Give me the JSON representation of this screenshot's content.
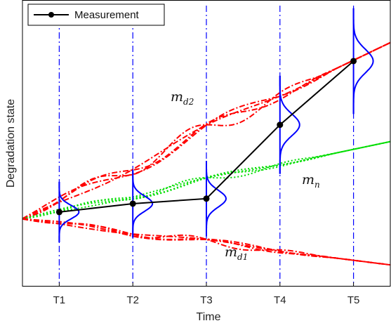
{
  "chart_data": {
    "type": "line",
    "title": "",
    "xlabel": "Time",
    "ylabel": "Degradation state",
    "categories": [
      "T1",
      "T2",
      "T3",
      "T4",
      "T5"
    ],
    "xlim": [
      0.5,
      5.5
    ],
    "ylim": [
      -0.8,
      2.6
    ],
    "grid": false,
    "legend": {
      "placement": "top-left",
      "entries": [
        "Measurement"
      ]
    },
    "series": [
      {
        "name": "Measurement",
        "color": "#000000",
        "marker": "circle",
        "x": [
          1,
          2,
          3,
          4,
          5
        ],
        "y": [
          0.08,
          0.18,
          0.24,
          1.12,
          1.88
        ]
      }
    ],
    "uncalibrated_trends": [
      {
        "label_main": "m",
        "label_sub": "d2",
        "color": "#ff0000",
        "style": "dash-dot",
        "x": [
          0.5,
          5.5
        ],
        "y_center": [
          0.0,
          2.1
        ],
        "spread": 0.12
      },
      {
        "label_main": "m",
        "label_sub": "n",
        "color": "#00dd00",
        "style": "dotted",
        "x": [
          0.5,
          5.5
        ],
        "y_center": [
          0.0,
          0.92
        ],
        "spread": 0.05
      },
      {
        "label_main": "m",
        "label_sub": "d1",
        "color": "#ff0000",
        "style": "dash-dot",
        "x": [
          0.5,
          5.5
        ],
        "y_center": [
          0.0,
          -0.55
        ],
        "spread": 0.05
      }
    ],
    "distributions": {
      "color": "#0000ff",
      "x": [
        1,
        2,
        3,
        4,
        5
      ],
      "mean": [
        0.08,
        0.18,
        0.24,
        1.12,
        1.88
      ],
      "sigma": [
        0.08,
        0.09,
        0.1,
        0.13,
        0.14
      ]
    },
    "vertical_guides": {
      "color": "#0000ff",
      "style": "dash-dot",
      "x": [
        1,
        2,
        3,
        4,
        5
      ]
    }
  }
}
